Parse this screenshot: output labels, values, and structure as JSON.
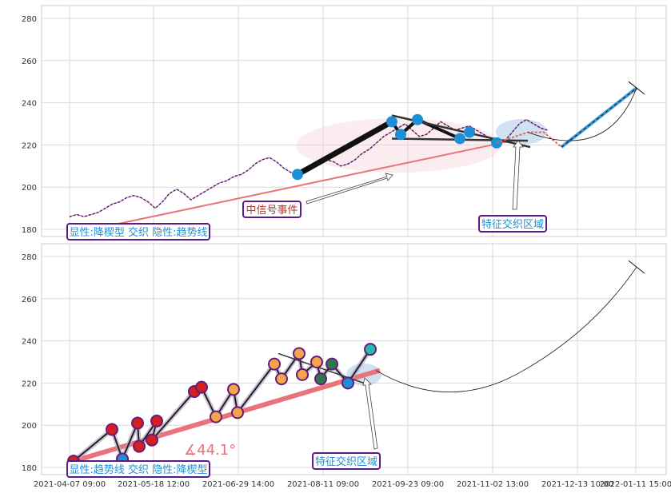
{
  "chart_data": [
    {
      "type": "line",
      "panel": "top",
      "ylim": [
        176,
        284
      ],
      "yticks": [
        180,
        200,
        220,
        240,
        260,
        280
      ],
      "grid": true,
      "xticks": [
        "2021-04-07 09:00",
        "2021-05-18 12:00",
        "2021-06-29 14:00",
        "2021-08-11 09:00",
        "2021-09-23 09:00",
        "2021-11-02 13:00",
        "2021-12-13 10:00",
        "2022-01-11 15:00"
      ],
      "series": [
        {
          "values": [
            186,
            187,
            186,
            187,
            188,
            190,
            192,
            193,
            195,
            196,
            195,
            193,
            190,
            193,
            197,
            199,
            197,
            194,
            196,
            198,
            200,
            202,
            203,
            205,
            206,
            208,
            211,
            213,
            214,
            212,
            209,
            207,
            206,
            208,
            210,
            212,
            213,
            212,
            210,
            211,
            213,
            216,
            218,
            221,
            224,
            226,
            228,
            230,
            227,
            224,
            225,
            228,
            231,
            229,
            227,
            228,
            229,
            227,
            225,
            223,
            221,
            222,
            226,
            230,
            232,
            230,
            228,
            227
          ]
        }
      ],
      "annotations": [
        {
          "label": "显性:降楔型 交织 隐性:趋势线",
          "color": "#1c8fd6",
          "border": "#5a1a8a"
        },
        {
          "label": "中信号事件",
          "color": "#b03a2e",
          "border": "#5a1a8a"
        },
        {
          "label": "特征交织区域",
          "color": "#1c8fd6",
          "border": "#5a1a8a"
        }
      ],
      "marker_values": [
        206,
        231,
        225,
        232,
        223,
        226,
        221
      ],
      "trend_line": [
        182,
        222
      ],
      "projection": [
        219,
        247
      ]
    },
    {
      "type": "line",
      "panel": "bottom",
      "ylim": [
        176,
        284
      ],
      "yticks": [
        180,
        200,
        220,
        240,
        260,
        280
      ],
      "grid": true,
      "xticks": [
        "2021-04-07 09:00",
        "2021-05-18 12:00",
        "2021-06-29 14:00",
        "2021-08-11 09:00",
        "2021-09-23 09:00",
        "2021-11-02 13:00",
        "2021-12-13 10:00",
        "2022-01-11 15:00"
      ],
      "zigzag_values": [
        183,
        198,
        184,
        201,
        190,
        202,
        193,
        216,
        218,
        204,
        217,
        206,
        229,
        222,
        234,
        224,
        230,
        222,
        229,
        220,
        236
      ],
      "trend_line": [
        183,
        226
      ],
      "angle_label": "∡44.1°",
      "annotations": [
        {
          "label": "显性:趋势线 交织 隐性:降楔型",
          "color": "#1c8fd6",
          "border": "#5a1a8a"
        },
        {
          "label": "特征交织区域",
          "color": "#1c8fd6",
          "border": "#5a1a8a"
        }
      ],
      "projection_end": 275
    }
  ],
  "colors": {
    "price": "#4b0f7a",
    "trend": "#e8737a",
    "marker": "#1c8fd6",
    "label_text": "#1c8fd6",
    "label_red": "#b03a2e",
    "label_border": "#5a1a8a",
    "projection": "#3a9ad9"
  }
}
